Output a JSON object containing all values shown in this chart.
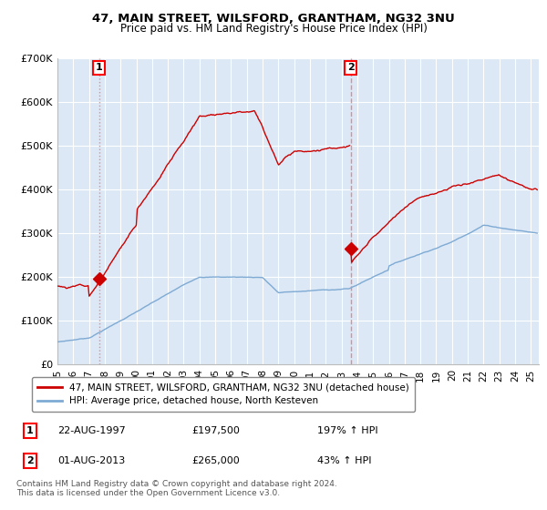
{
  "title": "47, MAIN STREET, WILSFORD, GRANTHAM, NG32 3NU",
  "subtitle": "Price paid vs. HM Land Registry's House Price Index (HPI)",
  "legend_line1": "47, MAIN STREET, WILSFORD, GRANTHAM, NG32 3NU (detached house)",
  "legend_line2": "HPI: Average price, detached house, North Kesteven",
  "footnote": "Contains HM Land Registry data © Crown copyright and database right 2024.\nThis data is licensed under the Open Government Licence v3.0.",
  "sale1_label": "1",
  "sale1_date": "22-AUG-1997",
  "sale1_price": "£197,500",
  "sale1_hpi": "197% ↑ HPI",
  "sale1_year": 1997.64,
  "sale1_value": 197500,
  "sale2_label": "2",
  "sale2_date": "01-AUG-2013",
  "sale2_price": "£265,000",
  "sale2_hpi": "43% ↑ HPI",
  "sale2_year": 2013.58,
  "sale2_value": 265000,
  "hpi_color": "#7eaad4",
  "price_color": "#cc0000",
  "vline_color": "#e88080",
  "dot_color": "#cc0000",
  "background_color": "#dce8f5",
  "ylim": [
    0,
    700000
  ],
  "xlim_start": 1995.0,
  "xlim_end": 2025.5
}
